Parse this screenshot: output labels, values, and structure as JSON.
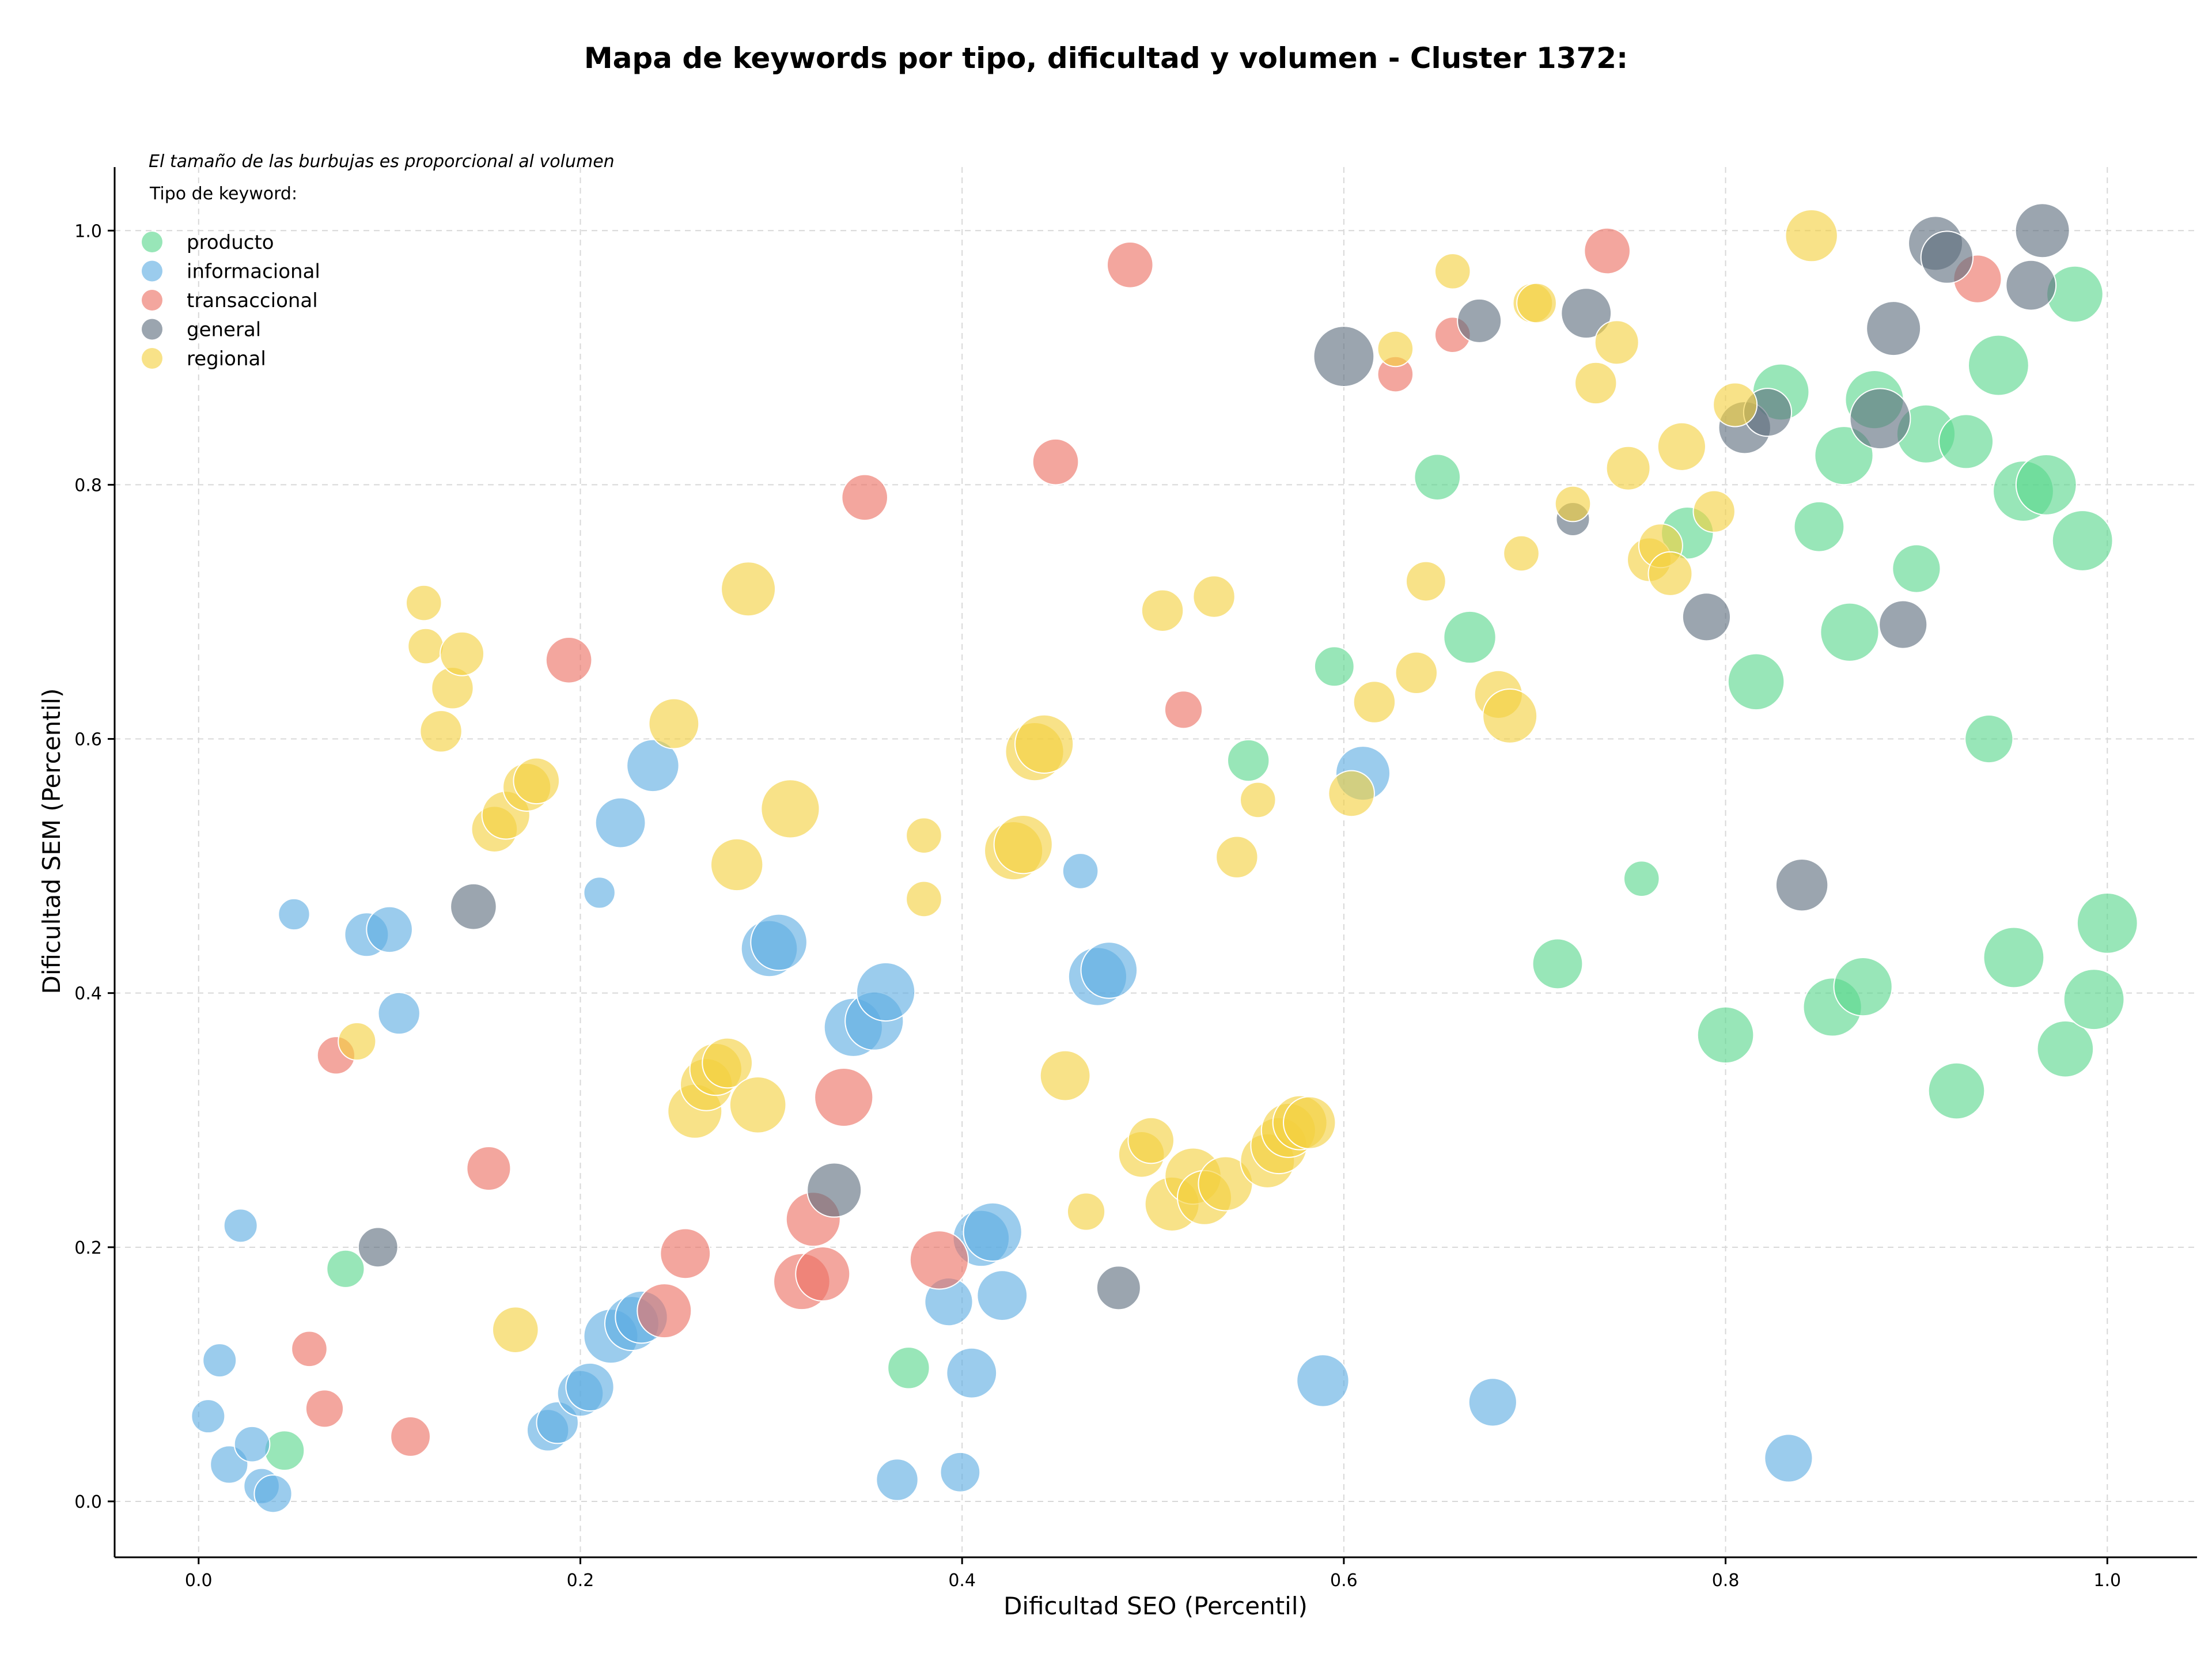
{
  "chart_data": {
    "type": "scatter",
    "title": "Mapa de keywords por tipo, dificultad y volumen - Cluster 1372:",
    "xlabel": "Dificultad SEO (Percentil)",
    "ylabel": "Dificultad SEM (Percentil)",
    "note": "El tamaño de las burbujas es proporcional al volumen",
    "legend_title": "Tipo de keyword:",
    "legend_position": "top-left",
    "grid": true,
    "xlim": [
      -0.044,
      1.047
    ],
    "ylim": [
      -0.044,
      1.05
    ],
    "x_ticks": [
      "0.0",
      "0.2",
      "0.4",
      "0.6",
      "0.8",
      "1.0"
    ],
    "y_ticks": [
      "0.0",
      "0.2",
      "0.4",
      "0.6",
      "0.8",
      "1.0"
    ],
    "series": [
      {
        "name": "producto",
        "color": "#58d68d",
        "points": [
          [
            0.045,
            0.04,
            0.4
          ],
          [
            0.077,
            0.183,
            0.35
          ],
          [
            0.372,
            0.105,
            0.45
          ],
          [
            0.55,
            0.583,
            0.45
          ],
          [
            0.595,
            0.657,
            0.4
          ],
          [
            0.649,
            0.806,
            0.55
          ],
          [
            0.666,
            0.68,
            0.7
          ],
          [
            0.712,
            0.423,
            0.65
          ],
          [
            0.756,
            0.49,
            0.3
          ],
          [
            0.78,
            0.762,
            0.7
          ],
          [
            0.8,
            0.367,
            0.8
          ],
          [
            0.816,
            0.645,
            0.8
          ],
          [
            0.829,
            0.873,
            0.8
          ],
          [
            0.849,
            0.767,
            0.65
          ],
          [
            0.856,
            0.389,
            0.85
          ],
          [
            0.862,
            0.823,
            0.85
          ],
          [
            0.865,
            0.684,
            0.85
          ],
          [
            0.872,
            0.405,
            0.85
          ],
          [
            0.878,
            0.867,
            0.85
          ],
          [
            0.9,
            0.734,
            0.6
          ],
          [
            0.905,
            0.84,
            0.85
          ],
          [
            0.921,
            0.323,
            0.8
          ],
          [
            0.926,
            0.834,
            0.75
          ],
          [
            0.938,
            0.6,
            0.6
          ],
          [
            0.943,
            0.894,
            0.9
          ],
          [
            0.951,
            0.428,
            0.9
          ],
          [
            0.956,
            0.795,
            0.9
          ],
          [
            0.968,
            0.8,
            0.9
          ],
          [
            0.978,
            0.356,
            0.8
          ],
          [
            0.983,
            0.95,
            0.8
          ],
          [
            0.987,
            0.756,
            0.9
          ],
          [
            0.993,
            0.395,
            0.9
          ],
          [
            1.0,
            0.455,
            0.9
          ]
        ]
      },
      {
        "name": "informacional",
        "color": "#5dade2",
        "points": [
          [
            0.005,
            0.067,
            0.25
          ],
          [
            0.011,
            0.111,
            0.25
          ],
          [
            0.016,
            0.029,
            0.35
          ],
          [
            0.022,
            0.217,
            0.25
          ],
          [
            0.028,
            0.045,
            0.3
          ],
          [
            0.033,
            0.012,
            0.3
          ],
          [
            0.039,
            0.006,
            0.35
          ],
          [
            0.05,
            0.462,
            0.2
          ],
          [
            0.088,
            0.446,
            0.5
          ],
          [
            0.1,
            0.45,
            0.55
          ],
          [
            0.105,
            0.384,
            0.45
          ],
          [
            0.183,
            0.056,
            0.45
          ],
          [
            0.188,
            0.062,
            0.45
          ],
          [
            0.2,
            0.085,
            0.55
          ],
          [
            0.205,
            0.09,
            0.6
          ],
          [
            0.21,
            0.479,
            0.2
          ],
          [
            0.216,
            0.13,
            0.75
          ],
          [
            0.221,
            0.534,
            0.65
          ],
          [
            0.227,
            0.14,
            0.75
          ],
          [
            0.232,
            0.145,
            0.7
          ],
          [
            0.238,
            0.579,
            0.7
          ],
          [
            0.299,
            0.435,
            0.8
          ],
          [
            0.304,
            0.44,
            0.8
          ],
          [
            0.343,
            0.373,
            0.85
          ],
          [
            0.354,
            0.378,
            0.85
          ],
          [
            0.36,
            0.401,
            0.85
          ],
          [
            0.366,
            0.017,
            0.45
          ],
          [
            0.393,
            0.157,
            0.6
          ],
          [
            0.399,
            0.023,
            0.4
          ],
          [
            0.405,
            0.101,
            0.65
          ],
          [
            0.41,
            0.207,
            0.8
          ],
          [
            0.416,
            0.212,
            0.85
          ],
          [
            0.421,
            0.162,
            0.65
          ],
          [
            0.462,
            0.496,
            0.3
          ],
          [
            0.471,
            0.413,
            0.85
          ],
          [
            0.477,
            0.418,
            0.8
          ],
          [
            0.589,
            0.095,
            0.7
          ],
          [
            0.61,
            0.573,
            0.75
          ],
          [
            0.678,
            0.078,
            0.6
          ],
          [
            0.833,
            0.034,
            0.6
          ]
        ]
      },
      {
        "name": "transaccional",
        "color": "#ec7063",
        "points": [
          [
            0.058,
            0.12,
            0.3
          ],
          [
            0.066,
            0.073,
            0.35
          ],
          [
            0.072,
            0.351,
            0.35
          ],
          [
            0.111,
            0.051,
            0.4
          ],
          [
            0.152,
            0.262,
            0.5
          ],
          [
            0.194,
            0.662,
            0.55
          ],
          [
            0.244,
            0.15,
            0.75
          ],
          [
            0.255,
            0.195,
            0.65
          ],
          [
            0.316,
            0.173,
            0.8
          ],
          [
            0.322,
            0.222,
            0.75
          ],
          [
            0.327,
            0.179,
            0.75
          ],
          [
            0.338,
            0.318,
            0.85
          ],
          [
            0.349,
            0.79,
            0.55
          ],
          [
            0.388,
            0.19,
            0.85
          ],
          [
            0.449,
            0.818,
            0.55
          ],
          [
            0.488,
            0.973,
            0.55
          ],
          [
            0.516,
            0.623,
            0.35
          ],
          [
            0.627,
            0.887,
            0.3
          ],
          [
            0.657,
            0.918,
            0.3
          ],
          [
            0.738,
            0.984,
            0.55
          ],
          [
            0.932,
            0.962,
            0.6
          ]
        ]
      },
      {
        "name": "general",
        "color": "#5d6d7e",
        "points": [
          [
            0.094,
            0.2,
            0.4
          ],
          [
            0.144,
            0.468,
            0.55
          ],
          [
            0.333,
            0.245,
            0.75
          ],
          [
            0.482,
            0.168,
            0.5
          ],
          [
            0.6,
            0.901,
            0.9
          ],
          [
            0.671,
            0.929,
            0.5
          ],
          [
            0.727,
            0.935,
            0.65
          ],
          [
            0.72,
            0.773,
            0.25
          ],
          [
            0.79,
            0.696,
            0.6
          ],
          [
            0.81,
            0.845,
            0.7
          ],
          [
            0.822,
            0.857,
            0.6
          ],
          [
            0.84,
            0.485,
            0.7
          ],
          [
            0.881,
            0.852,
            0.9
          ],
          [
            0.888,
            0.923,
            0.75
          ],
          [
            0.893,
            0.69,
            0.6
          ],
          [
            0.91,
            0.99,
            0.75
          ],
          [
            0.916,
            0.979,
            0.7
          ],
          [
            0.96,
            0.957,
            0.65
          ],
          [
            0.966,
            1.0,
            0.75
          ]
        ]
      },
      {
        "name": "regional",
        "color": "#f4d03f",
        "points": [
          [
            0.083,
            0.362,
            0.35
          ],
          [
            0.118,
            0.707,
            0.3
          ],
          [
            0.119,
            0.673,
            0.3
          ],
          [
            0.127,
            0.606,
            0.45
          ],
          [
            0.133,
            0.64,
            0.45
          ],
          [
            0.138,
            0.667,
            0.5
          ],
          [
            0.155,
            0.529,
            0.55
          ],
          [
            0.161,
            0.54,
            0.6
          ],
          [
            0.166,
            0.135,
            0.55
          ],
          [
            0.172,
            0.562,
            0.6
          ],
          [
            0.177,
            0.567,
            0.55
          ],
          [
            0.249,
            0.612,
            0.65
          ],
          [
            0.26,
            0.307,
            0.75
          ],
          [
            0.266,
            0.328,
            0.7
          ],
          [
            0.271,
            0.34,
            0.7
          ],
          [
            0.277,
            0.345,
            0.65
          ],
          [
            0.282,
            0.501,
            0.7
          ],
          [
            0.288,
            0.718,
            0.75
          ],
          [
            0.293,
            0.312,
            0.8
          ],
          [
            0.31,
            0.545,
            0.85
          ],
          [
            0.38,
            0.524,
            0.3
          ],
          [
            0.38,
            0.474,
            0.3
          ],
          [
            0.427,
            0.512,
            0.85
          ],
          [
            0.432,
            0.517,
            0.85
          ],
          [
            0.438,
            0.59,
            0.85
          ],
          [
            0.443,
            0.596,
            0.85
          ],
          [
            0.454,
            0.335,
            0.65
          ],
          [
            0.465,
            0.228,
            0.35
          ],
          [
            0.494,
            0.273,
            0.55
          ],
          [
            0.499,
            0.284,
            0.55
          ],
          [
            0.505,
            0.701,
            0.45
          ],
          [
            0.51,
            0.234,
            0.75
          ],
          [
            0.521,
            0.256,
            0.8
          ],
          [
            0.527,
            0.239,
            0.75
          ],
          [
            0.532,
            0.712,
            0.45
          ],
          [
            0.538,
            0.25,
            0.75
          ],
          [
            0.544,
            0.507,
            0.45
          ],
          [
            0.555,
            0.552,
            0.3
          ],
          [
            0.56,
            0.268,
            0.75
          ],
          [
            0.566,
            0.28,
            0.8
          ],
          [
            0.571,
            0.292,
            0.75
          ],
          [
            0.577,
            0.298,
            0.75
          ],
          [
            0.582,
            0.298,
            0.7
          ],
          [
            0.604,
            0.557,
            0.55
          ],
          [
            0.616,
            0.629,
            0.45
          ],
          [
            0.627,
            0.907,
            0.3
          ],
          [
            0.638,
            0.652,
            0.45
          ],
          [
            0.643,
            0.724,
            0.4
          ],
          [
            0.657,
            0.968,
            0.3
          ],
          [
            0.681,
            0.635,
            0.6
          ],
          [
            0.687,
            0.618,
            0.75
          ],
          [
            0.693,
            0.746,
            0.3
          ],
          [
            0.699,
            0.943,
            0.4
          ],
          [
            0.701,
            0.943,
            0.4
          ],
          [
            0.72,
            0.785,
            0.3
          ],
          [
            0.732,
            0.88,
            0.45
          ],
          [
            0.743,
            0.912,
            0.5
          ],
          [
            0.749,
            0.813,
            0.5
          ],
          [
            0.76,
            0.741,
            0.5
          ],
          [
            0.766,
            0.752,
            0.5
          ],
          [
            0.771,
            0.73,
            0.5
          ],
          [
            0.777,
            0.83,
            0.6
          ],
          [
            0.794,
            0.779,
            0.45
          ],
          [
            0.805,
            0.863,
            0.5
          ],
          [
            0.845,
            0.996,
            0.7
          ]
        ]
      }
    ]
  }
}
